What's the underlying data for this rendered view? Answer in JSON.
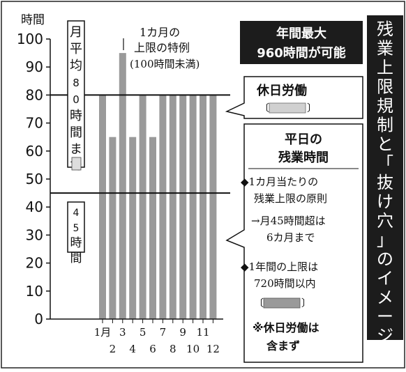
{
  "chart_data": {
    "type": "bar",
    "ylabel": "時間",
    "ylim": [
      0,
      100
    ],
    "yticks": [
      0,
      10,
      20,
      30,
      40,
      50,
      60,
      70,
      80,
      90,
      100
    ],
    "categories_top": [
      "1月",
      "3",
      "5",
      "7",
      "9",
      "11"
    ],
    "categories_bottom": [
      "2",
      "4",
      "6",
      "8",
      "10",
      "12"
    ],
    "months": [
      1,
      2,
      3,
      4,
      5,
      6,
      7,
      8,
      9,
      10,
      11,
      12
    ],
    "series": [
      {
        "name": "休日労働",
        "values": [
          0,
          0,
          0,
          0,
          0,
          0,
          0,
          0,
          0,
          0,
          0,
          0
        ]
      }
    ],
    "weekday_overtime": [
      80,
      65,
      95,
      65,
      80,
      65,
      80,
      80,
      80,
      80,
      80,
      80
    ],
    "reference_lines": [
      {
        "value": 80,
        "label": "月平均80時間まで"
      },
      {
        "value": 45,
        "label": "45時間"
      }
    ]
  },
  "annotations": {
    "monthly_avg_label": "月平均80時間まで",
    "limit_45_label": "45時間",
    "special_case_line1": "1カ月の",
    "special_case_line2": "上限の特例",
    "special_case_line3": "(100時間未満)",
    "annual_max_line1": "年間最大",
    "annual_max_line2": "960時間が可能",
    "holiday_work_label": "休日労働",
    "weekday_title_line1": "平日の",
    "weekday_title_line2": "残業時間",
    "rule1_line1": "◆1カ月当たりの",
    "rule1_line2": "残業上限の原則",
    "rule1_line3": "→月45時間超は",
    "rule1_line4": "6カ月まで",
    "rule2_line1": "◆1年間の上限は",
    "rule2_line2": "720時間以内",
    "note_line1": "※休日労働は",
    "note_line2": "含まず",
    "side_title": "残業上限規制と「抜け穴」のイメージ"
  },
  "colors": {
    "weekday_bar": "#9a9a9a",
    "holiday_bar": "#d0d0d0",
    "dark_panel": "#1c1c1c",
    "panel_text": "#ffffff"
  }
}
